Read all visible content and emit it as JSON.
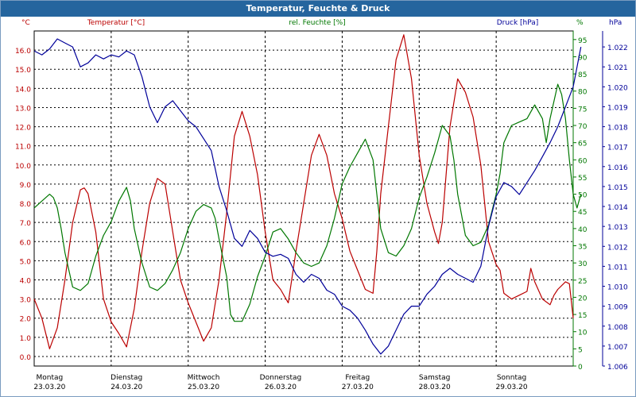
{
  "window": {
    "title": "Temperatur, Feuchte & Druck"
  },
  "colors": {
    "temperature": "#bb0000",
    "humidity": "#007700",
    "pressure": "#000099",
    "title_bar": "#25659e",
    "grid": "#000000"
  },
  "chart_data": {
    "type": "line",
    "title": "Temperatur, Feuchte & Druck",
    "grid": true,
    "x": {
      "days": [
        {
          "label": "Montag",
          "date": "23.03.20"
        },
        {
          "label": "Dienstag",
          "date": "24.03.20"
        },
        {
          "label": "Mittwoch",
          "date": "25.03.20"
        },
        {
          "label": "Donnerstag",
          "date": "26.03.20"
        },
        {
          "label": "Freitag",
          "date": "27.03.20"
        },
        {
          "label": "Samstag",
          "date": "28.03.20"
        },
        {
          "label": "Sonntag",
          "date": "29.03.20"
        }
      ],
      "range_days": [
        0,
        7
      ]
    },
    "axes": {
      "temperature": {
        "label": "Temperatur [°C]",
        "unit": "°C",
        "min": -0.5,
        "max": 17,
        "ticks": [
          "0.0",
          "1.0",
          "2.0",
          "3.0",
          "4.0",
          "5.0",
          "6.0",
          "7.0",
          "8.0",
          "9.0",
          "10.0",
          "11.0",
          "12.0",
          "13.0",
          "14.0",
          "15.0",
          "16.0"
        ]
      },
      "humidity": {
        "label": "rel. Feuchte [%]",
        "unit": "%",
        "min": 0,
        "max": 97.5,
        "ticks": [
          "0",
          "5",
          "10",
          "15",
          "20",
          "25",
          "30",
          "35",
          "40",
          "45",
          "50",
          "55",
          "60",
          "65",
          "70",
          "75",
          "80",
          "85",
          "90",
          "95"
        ]
      },
      "pressure": {
        "label": "Druck [hPa]",
        "unit": "hPa",
        "min": 1.006,
        "max": 1.0228,
        "ticks": [
          "1.006",
          "1.007",
          "1.008",
          "1.009",
          "1.010",
          "1.011",
          "1.012",
          "1.013",
          "1.014",
          "1.015",
          "1.016",
          "1.017",
          "1.018",
          "1.019",
          "1.020",
          "1.021",
          "1.022"
        ]
      }
    },
    "series": [
      {
        "name": "Temperatur [°C]",
        "axis": "temperature",
        "points": [
          [
            0.0,
            3.0
          ],
          [
            0.1,
            2.0
          ],
          [
            0.2,
            0.4
          ],
          [
            0.3,
            1.5
          ],
          [
            0.4,
            4.0
          ],
          [
            0.5,
            7.0
          ],
          [
            0.6,
            8.7
          ],
          [
            0.65,
            8.8
          ],
          [
            0.7,
            8.5
          ],
          [
            0.8,
            6.5
          ],
          [
            0.9,
            3.0
          ],
          [
            1.0,
            1.8
          ],
          [
            1.1,
            1.2
          ],
          [
            1.2,
            0.5
          ],
          [
            1.3,
            2.5
          ],
          [
            1.4,
            5.5
          ],
          [
            1.5,
            8.0
          ],
          [
            1.6,
            9.3
          ],
          [
            1.7,
            9.0
          ],
          [
            1.8,
            6.5
          ],
          [
            1.9,
            4.0
          ],
          [
            2.0,
            2.8
          ],
          [
            2.1,
            1.8
          ],
          [
            2.2,
            0.8
          ],
          [
            2.3,
            1.5
          ],
          [
            2.4,
            4.0
          ],
          [
            2.5,
            7.5
          ],
          [
            2.6,
            11.5
          ],
          [
            2.7,
            12.8
          ],
          [
            2.8,
            11.5
          ],
          [
            2.9,
            9.5
          ],
          [
            3.0,
            6.5
          ],
          [
            3.1,
            4.0
          ],
          [
            3.2,
            3.5
          ],
          [
            3.3,
            2.8
          ],
          [
            3.4,
            5.5
          ],
          [
            3.5,
            8.0
          ],
          [
            3.6,
            10.5
          ],
          [
            3.7,
            11.6
          ],
          [
            3.8,
            10.5
          ],
          [
            3.9,
            8.5
          ],
          [
            4.0,
            7.2
          ],
          [
            4.1,
            5.5
          ],
          [
            4.2,
            4.5
          ],
          [
            4.3,
            3.5
          ],
          [
            4.4,
            3.3
          ],
          [
            4.45,
            5.5
          ],
          [
            4.5,
            8.5
          ],
          [
            4.6,
            12.0
          ],
          [
            4.7,
            15.5
          ],
          [
            4.8,
            16.8
          ],
          [
            4.9,
            14.5
          ],
          [
            5.0,
            10.5
          ],
          [
            5.1,
            8.0
          ],
          [
            5.2,
            6.5
          ],
          [
            5.25,
            5.9
          ],
          [
            5.3,
            7.0
          ],
          [
            5.4,
            12.0
          ],
          [
            5.5,
            14.5
          ],
          [
            5.6,
            13.8
          ],
          [
            5.7,
            12.5
          ],
          [
            5.8,
            10.0
          ],
          [
            5.9,
            6.0
          ],
          [
            6.0,
            4.8
          ],
          [
            6.05,
            4.5
          ],
          [
            6.1,
            3.3
          ],
          [
            6.2,
            3.0
          ],
          [
            6.3,
            3.2
          ],
          [
            6.4,
            3.4
          ],
          [
            6.45,
            4.6
          ],
          [
            6.5,
            3.9
          ],
          [
            6.6,
            3.0
          ],
          [
            6.7,
            2.7
          ],
          [
            6.75,
            3.2
          ],
          [
            6.8,
            3.5
          ],
          [
            6.9,
            3.9
          ],
          [
            6.95,
            3.8
          ],
          [
            7.0,
            2.0
          ]
        ]
      },
      {
        "name": "rel. Feuchte [%]",
        "axis": "humidity",
        "points": [
          [
            0.0,
            46
          ],
          [
            0.1,
            48
          ],
          [
            0.2,
            50
          ],
          [
            0.25,
            49
          ],
          [
            0.3,
            46
          ],
          [
            0.35,
            40
          ],
          [
            0.4,
            33
          ],
          [
            0.5,
            23
          ],
          [
            0.6,
            22
          ],
          [
            0.7,
            24
          ],
          [
            0.8,
            32
          ],
          [
            0.9,
            38
          ],
          [
            1.0,
            42
          ],
          [
            1.1,
            48
          ],
          [
            1.2,
            52
          ],
          [
            1.25,
            48
          ],
          [
            1.3,
            40
          ],
          [
            1.4,
            30
          ],
          [
            1.5,
            23
          ],
          [
            1.6,
            22
          ],
          [
            1.7,
            24
          ],
          [
            1.8,
            28
          ],
          [
            1.9,
            33
          ],
          [
            2.0,
            40
          ],
          [
            2.1,
            45
          ],
          [
            2.2,
            47
          ],
          [
            2.3,
            46
          ],
          [
            2.35,
            43
          ],
          [
            2.4,
            37
          ],
          [
            2.5,
            26
          ],
          [
            2.55,
            15
          ],
          [
            2.6,
            13
          ],
          [
            2.7,
            13
          ],
          [
            2.8,
            18
          ],
          [
            2.9,
            26
          ],
          [
            3.0,
            32
          ],
          [
            3.1,
            39
          ],
          [
            3.2,
            40
          ],
          [
            3.3,
            37
          ],
          [
            3.4,
            33
          ],
          [
            3.5,
            30
          ],
          [
            3.6,
            29
          ],
          [
            3.7,
            30
          ],
          [
            3.8,
            35
          ],
          [
            3.9,
            43
          ],
          [
            4.0,
            53
          ],
          [
            4.1,
            58
          ],
          [
            4.2,
            62
          ],
          [
            4.3,
            66
          ],
          [
            4.4,
            60
          ],
          [
            4.45,
            50
          ],
          [
            4.5,
            40
          ],
          [
            4.6,
            33
          ],
          [
            4.7,
            32
          ],
          [
            4.8,
            35
          ],
          [
            4.9,
            40
          ],
          [
            5.0,
            49
          ],
          [
            5.1,
            55
          ],
          [
            5.2,
            62
          ],
          [
            5.3,
            70
          ],
          [
            5.4,
            67
          ],
          [
            5.45,
            60
          ],
          [
            5.5,
            50
          ],
          [
            5.6,
            38
          ],
          [
            5.7,
            35
          ],
          [
            5.8,
            36
          ],
          [
            5.9,
            41
          ],
          [
            6.0,
            50
          ],
          [
            6.05,
            56
          ],
          [
            6.1,
            65
          ],
          [
            6.2,
            70
          ],
          [
            6.3,
            71
          ],
          [
            6.4,
            72
          ],
          [
            6.5,
            76
          ],
          [
            6.6,
            72
          ],
          [
            6.65,
            65
          ],
          [
            6.7,
            72
          ],
          [
            6.8,
            82
          ],
          [
            6.85,
            79
          ],
          [
            6.9,
            72
          ],
          [
            6.95,
            60
          ],
          [
            7.0,
            50
          ],
          [
            7.05,
            46
          ],
          [
            7.1,
            50
          ]
        ]
      },
      {
        "name": "Druck [hPa]",
        "axis": "pressure",
        "points": [
          [
            0.0,
            1.0218
          ],
          [
            0.1,
            1.0216
          ],
          [
            0.2,
            1.0219
          ],
          [
            0.3,
            1.0224
          ],
          [
            0.4,
            1.0222
          ],
          [
            0.5,
            1.022
          ],
          [
            0.6,
            1.021
          ],
          [
            0.7,
            1.0212
          ],
          [
            0.8,
            1.0216
          ],
          [
            0.9,
            1.0214
          ],
          [
            1.0,
            1.0216
          ],
          [
            1.1,
            1.0215
          ],
          [
            1.2,
            1.0218
          ],
          [
            1.3,
            1.0216
          ],
          [
            1.4,
            1.0205
          ],
          [
            1.5,
            1.019
          ],
          [
            1.6,
            1.0182
          ],
          [
            1.7,
            1.019
          ],
          [
            1.8,
            1.0193
          ],
          [
            1.9,
            1.0188
          ],
          [
            2.0,
            1.0183
          ],
          [
            2.1,
            1.018
          ],
          [
            2.2,
            1.0174
          ],
          [
            2.3,
            1.0168
          ],
          [
            2.4,
            1.015
          ],
          [
            2.5,
            1.0138
          ],
          [
            2.6,
            1.0124
          ],
          [
            2.7,
            1.012
          ],
          [
            2.8,
            1.0128
          ],
          [
            2.9,
            1.0124
          ],
          [
            3.0,
            1.0117
          ],
          [
            3.1,
            1.0115
          ],
          [
            3.2,
            1.0116
          ],
          [
            3.3,
            1.0114
          ],
          [
            3.4,
            1.0106
          ],
          [
            3.5,
            1.0102
          ],
          [
            3.6,
            1.0106
          ],
          [
            3.7,
            1.0104
          ],
          [
            3.8,
            1.0098
          ],
          [
            3.9,
            1.0096
          ],
          [
            4.0,
            1.009
          ],
          [
            4.1,
            1.0088
          ],
          [
            4.2,
            1.0084
          ],
          [
            4.3,
            1.0078
          ],
          [
            4.4,
            1.0071
          ],
          [
            4.5,
            1.0066
          ],
          [
            4.6,
            1.007
          ],
          [
            4.7,
            1.0078
          ],
          [
            4.8,
            1.0086
          ],
          [
            4.9,
            1.009
          ],
          [
            5.0,
            1.009
          ],
          [
            5.1,
            1.0096
          ],
          [
            5.2,
            1.01
          ],
          [
            5.3,
            1.0106
          ],
          [
            5.4,
            1.0109
          ],
          [
            5.5,
            1.0106
          ],
          [
            5.6,
            1.0104
          ],
          [
            5.7,
            1.0102
          ],
          [
            5.8,
            1.011
          ],
          [
            5.9,
            1.013
          ],
          [
            6.0,
            1.0145
          ],
          [
            6.1,
            1.0152
          ],
          [
            6.2,
            1.015
          ],
          [
            6.3,
            1.0146
          ],
          [
            6.4,
            1.0152
          ],
          [
            6.5,
            1.0158
          ],
          [
            6.6,
            1.0165
          ],
          [
            6.7,
            1.0172
          ],
          [
            6.8,
            1.018
          ],
          [
            6.9,
            1.019
          ],
          [
            7.0,
            1.02
          ],
          [
            7.1,
            1.022
          ]
        ]
      }
    ]
  }
}
